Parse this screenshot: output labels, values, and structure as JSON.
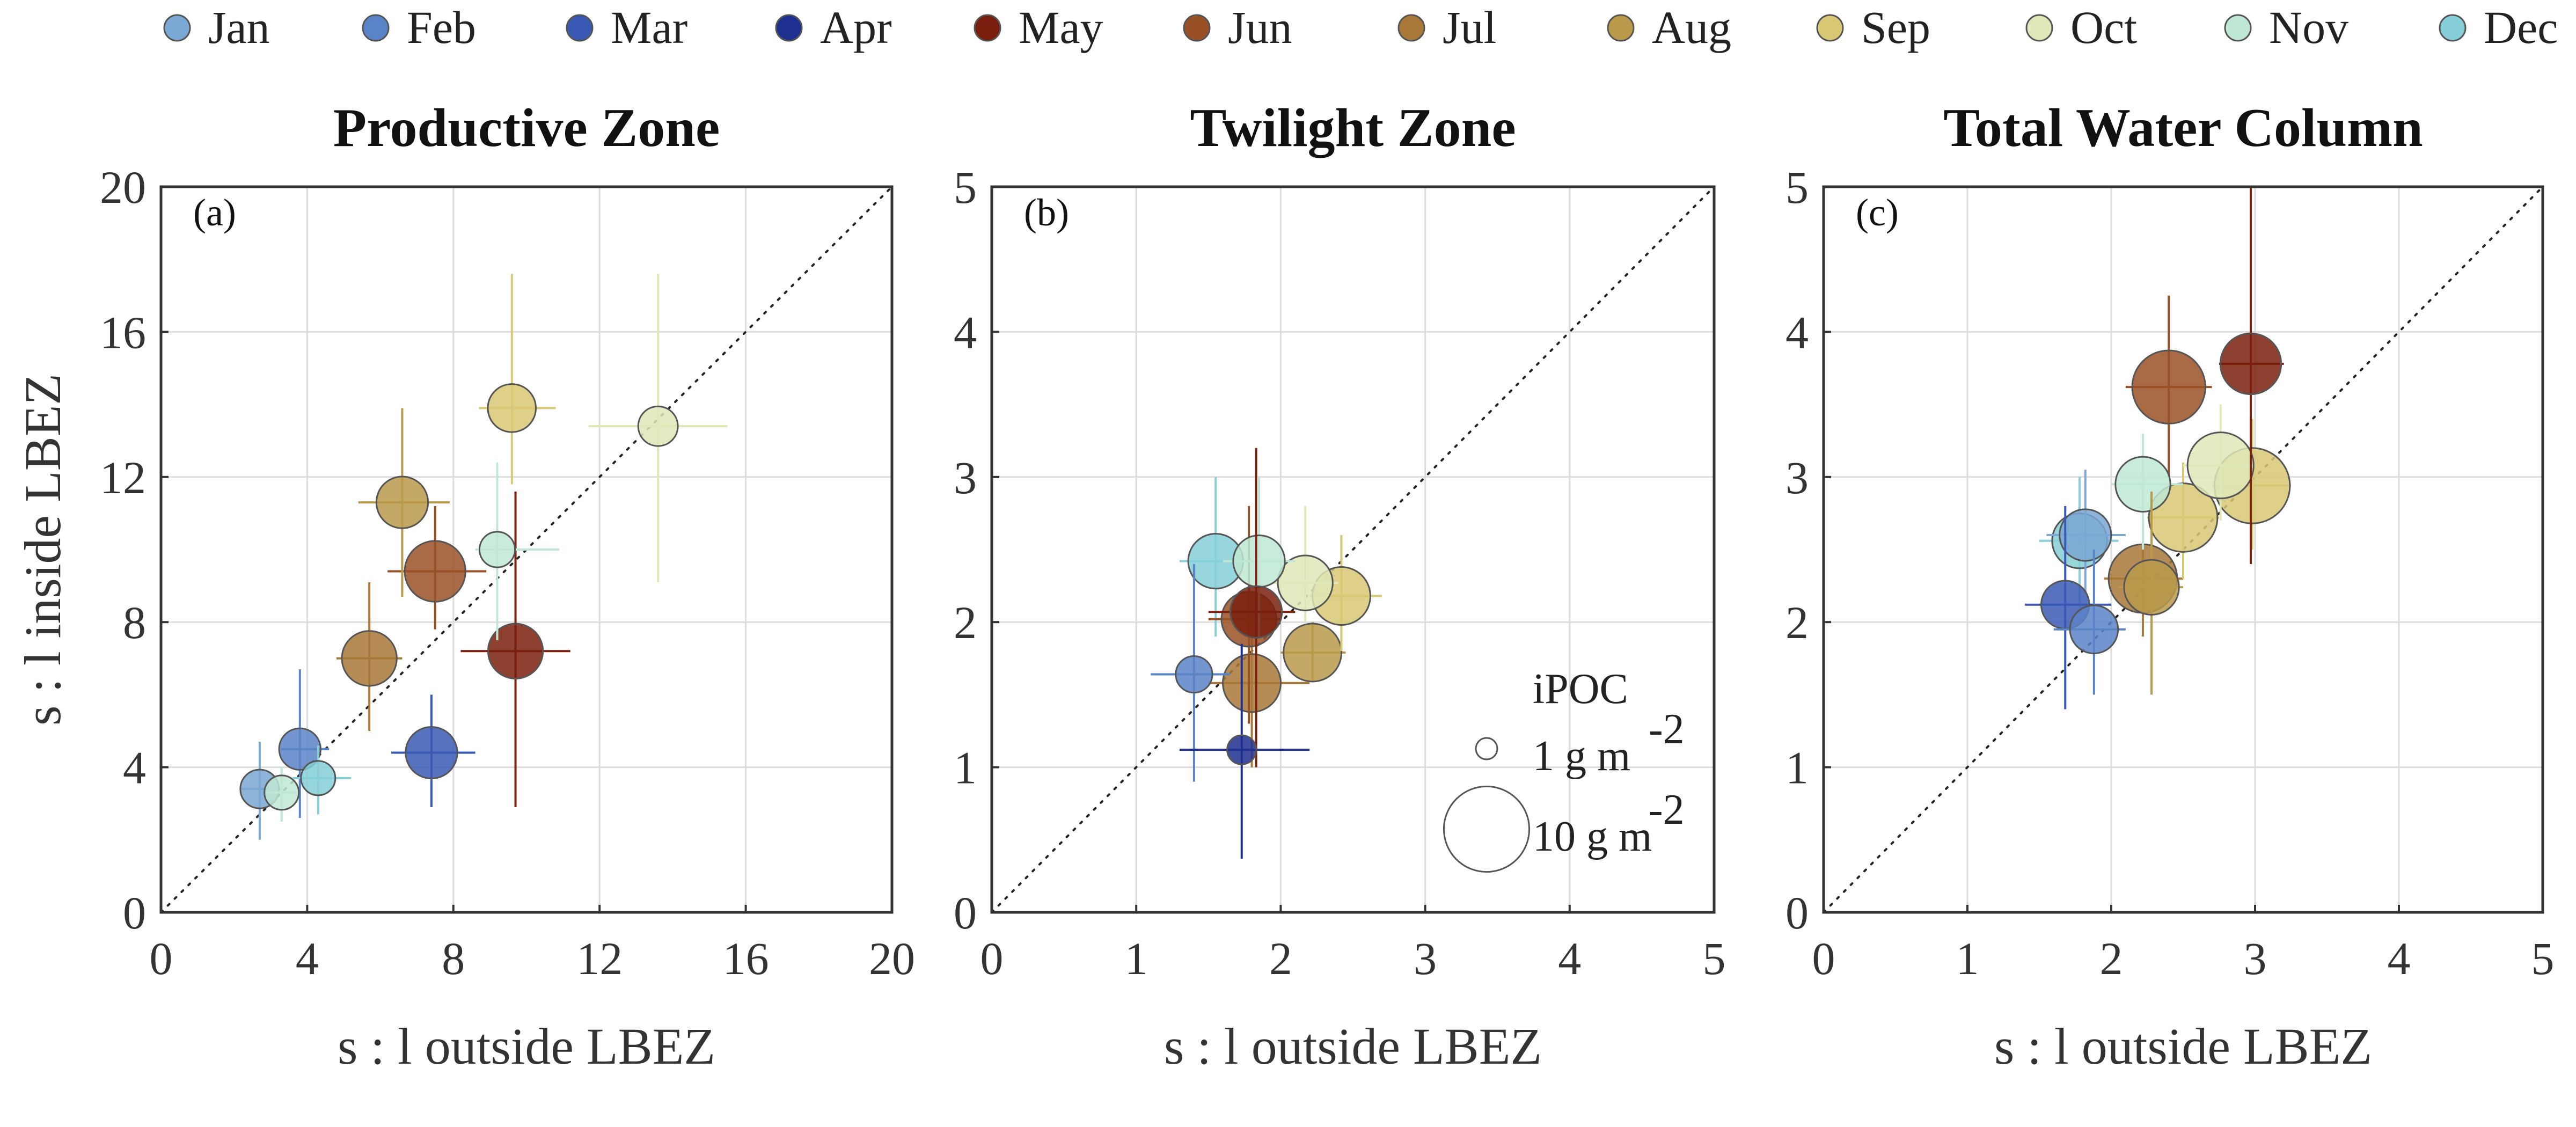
{
  "months": [
    "Jan",
    "Feb",
    "Mar",
    "Apr",
    "May",
    "Jun",
    "Jul",
    "Aug",
    "Sep",
    "Oct",
    "Nov",
    "Dec"
  ],
  "month_colors": {
    "Jan": "#7aa7d4",
    "Feb": "#5a84c8",
    "Mar": "#3a59b4",
    "Apr": "#1f2f8f",
    "May": "#7a1f0d",
    "Jun": "#9a5026",
    "Jul": "#a87838",
    "Aug": "#b89a4a",
    "Sep": "#d8c873",
    "Oct": "#dfe8b8",
    "Nov": "#bfe8d4",
    "Dec": "#86cfd8"
  },
  "axis_labels": {
    "y": "s : l inside LBEZ",
    "x": "s : l outside LBEZ"
  },
  "size_legend": {
    "title": "iPOC",
    "entries": [
      {
        "label": "1 g m",
        "exp": "-2",
        "value": 1
      },
      {
        "label": "10 g m",
        "exp": "-2",
        "value": 10
      }
    ]
  },
  "chart_data": [
    {
      "type": "scatter",
      "panel": "(a)",
      "title": "Productive Zone",
      "xlabel": "s : l outside LBEZ",
      "ylabel": "s : l inside LBEZ",
      "xlim": [
        0,
        20
      ],
      "ylim": [
        0,
        20
      ],
      "xticks": [
        0,
        4,
        8,
        12,
        16,
        20
      ],
      "yticks": [
        0,
        4,
        8,
        12,
        16,
        20
      ],
      "grid": true,
      "identity_line": true,
      "points": [
        {
          "month": "Jan",
          "x": 2.7,
          "y": 3.4,
          "xerr": [
            2.2,
            3.3
          ],
          "yerr": [
            2.0,
            4.7
          ],
          "ipoc": 1.4
        },
        {
          "month": "Feb",
          "x": 3.8,
          "y": 4.5,
          "xerr": [
            3.3,
            4.6
          ],
          "yerr": [
            2.6,
            6.7
          ],
          "ipoc": 1.7
        },
        {
          "month": "Nov",
          "x": 3.3,
          "y": 3.3,
          "xerr": [
            3.0,
            3.7
          ],
          "yerr": [
            2.5,
            4.0
          ],
          "ipoc": 1.0
        },
        {
          "month": "Dec",
          "x": 4.3,
          "y": 3.7,
          "xerr": [
            3.6,
            5.2
          ],
          "yerr": [
            2.7,
            4.6
          ],
          "ipoc": 1.0
        },
        {
          "month": "Mar",
          "x": 7.4,
          "y": 4.4,
          "xerr": [
            6.3,
            8.6
          ],
          "yerr": [
            2.9,
            6.0
          ],
          "ipoc": 3.0
        },
        {
          "month": "May",
          "x": 9.7,
          "y": 7.2,
          "xerr": [
            8.2,
            11.2
          ],
          "yerr": [
            2.9,
            11.6
          ],
          "ipoc": 3.5
        },
        {
          "month": "Jun",
          "x": 7.5,
          "y": 9.4,
          "xerr": [
            6.2,
            8.9
          ],
          "yerr": [
            7.8,
            11.2
          ],
          "ipoc": 4.5
        },
        {
          "month": "Jul",
          "x": 5.7,
          "y": 7.0,
          "xerr": [
            4.8,
            6.6
          ],
          "yerr": [
            5.0,
            9.1
          ],
          "ipoc": 3.5
        },
        {
          "month": "Aug",
          "x": 6.6,
          "y": 11.3,
          "xerr": [
            5.4,
            7.9
          ],
          "yerr": [
            8.7,
            13.9
          ],
          "ipoc": 3.0
        },
        {
          "month": "Sep",
          "x": 9.6,
          "y": 13.9,
          "xerr": [
            8.7,
            10.8
          ],
          "yerr": [
            11.8,
            17.6
          ],
          "ipoc": 2.5
        },
        {
          "month": "Oct",
          "x": 13.6,
          "y": 13.4,
          "xerr": [
            11.7,
            15.5
          ],
          "yerr": [
            9.1,
            17.6
          ],
          "ipoc": 1.5
        },
        {
          "month": "Nov",
          "x": 9.2,
          "y": 10.0,
          "xerr": [
            8.6,
            10.9
          ],
          "yerr": [
            7.5,
            12.4
          ],
          "ipoc": 1.1
        }
      ]
    },
    {
      "type": "scatter",
      "panel": "(b)",
      "title": "Twilight Zone",
      "xlabel": "s : l outside LBEZ",
      "ylabel": "",
      "xlim": [
        0,
        5
      ],
      "ylim": [
        0,
        5
      ],
      "xticks": [
        0,
        1,
        2,
        3,
        4,
        5
      ],
      "yticks": [
        0,
        1,
        2,
        3,
        4,
        5
      ],
      "grid": true,
      "identity_line": true,
      "points": [
        {
          "month": "Feb",
          "x": 1.4,
          "y": 1.64,
          "xerr": [
            1.1,
            1.65
          ],
          "yerr": [
            0.9,
            2.4
          ],
          "ipoc": 1.2
        },
        {
          "month": "Apr",
          "x": 1.73,
          "y": 1.12,
          "xerr": [
            1.3,
            2.2
          ],
          "yerr": [
            0.37,
            1.85
          ],
          "ipoc": 0.6
        },
        {
          "month": "Dec",
          "x": 1.55,
          "y": 2.42,
          "xerr": [
            1.3,
            1.85
          ],
          "yerr": [
            1.9,
            3.0
          ],
          "ipoc": 3.5
        },
        {
          "month": "Nov",
          "x": 1.85,
          "y": 2.42,
          "xerr": [
            1.6,
            2.1
          ],
          "yerr": [
            1.9,
            3.0
          ],
          "ipoc": 3.0
        },
        {
          "month": "May",
          "x": 1.83,
          "y": 2.07,
          "xerr": [
            1.5,
            2.1
          ],
          "yerr": [
            1.0,
            3.2
          ],
          "ipoc": 3.0
        },
        {
          "month": "Jun",
          "x": 1.78,
          "y": 2.02,
          "xerr": [
            1.5,
            2.0
          ],
          "yerr": [
            1.3,
            2.8
          ],
          "ipoc": 3.5
        },
        {
          "month": "Jul",
          "x": 1.8,
          "y": 1.58,
          "xerr": [
            1.5,
            2.2
          ],
          "yerr": [
            1.0,
            2.1
          ],
          "ipoc": 4.0
        },
        {
          "month": "Aug",
          "x": 2.22,
          "y": 1.79,
          "xerr": [
            2.0,
            2.45
          ],
          "yerr": [
            1.6,
            2.0
          ],
          "ipoc": 4.0
        },
        {
          "month": "Sep",
          "x": 2.42,
          "y": 2.18,
          "xerr": [
            2.2,
            2.7
          ],
          "yerr": [
            1.8,
            2.6
          ],
          "ipoc": 4.0
        },
        {
          "month": "Oct",
          "x": 2.17,
          "y": 2.27,
          "xerr": [
            1.95,
            2.4
          ],
          "yerr": [
            2.0,
            2.8
          ],
          "ipoc": 3.5
        }
      ]
    },
    {
      "type": "scatter",
      "panel": "(c)",
      "title": "Total Water Column",
      "xlabel": "s : l outside LBEZ",
      "ylabel": "",
      "xlim": [
        0,
        5
      ],
      "ylim": [
        0,
        5
      ],
      "xticks": [
        0,
        1,
        2,
        3,
        4,
        5
      ],
      "yticks": [
        0,
        1,
        2,
        3,
        4,
        5
      ],
      "grid": true,
      "identity_line": true,
      "points": [
        {
          "month": "Mar",
          "x": 1.68,
          "y": 2.12,
          "xerr": [
            1.4,
            2.0
          ],
          "yerr": [
            1.4,
            2.8
          ],
          "ipoc": 2.5
        },
        {
          "month": "Feb",
          "x": 1.88,
          "y": 1.95,
          "xerr": [
            1.6,
            2.1
          ],
          "yerr": [
            1.5,
            2.5
          ],
          "ipoc": 2.5
        },
        {
          "month": "Jan",
          "x": 1.82,
          "y": 2.6,
          "xerr": [
            1.55,
            2.1
          ],
          "yerr": [
            2.2,
            3.05
          ],
          "ipoc": 3.0
        },
        {
          "month": "Dec",
          "x": 1.78,
          "y": 2.56,
          "xerr": [
            1.5,
            2.05
          ],
          "yerr": [
            2.1,
            3.0
          ],
          "ipoc": 3.5
        },
        {
          "month": "Nov",
          "x": 2.22,
          "y": 2.95,
          "xerr": [
            2.0,
            2.5
          ],
          "yerr": [
            2.5,
            3.3
          ],
          "ipoc": 3.5
        },
        {
          "month": "Jun",
          "x": 2.4,
          "y": 3.62,
          "xerr": [
            2.1,
            2.7
          ],
          "yerr": [
            3.0,
            4.25
          ],
          "ipoc": 7.0
        },
        {
          "month": "May",
          "x": 2.97,
          "y": 3.78,
          "xerr": [
            2.75,
            3.2
          ],
          "yerr": [
            2.4,
            5.0
          ],
          "ipoc": 4.5
        },
        {
          "month": "Jul",
          "x": 2.22,
          "y": 2.3,
          "xerr": [
            1.95,
            2.5
          ],
          "yerr": [
            1.9,
            2.7
          ],
          "ipoc": 6.0
        },
        {
          "month": "Aug",
          "x": 2.28,
          "y": 2.24,
          "xerr": [
            2.05,
            2.5
          ],
          "yerr": [
            1.5,
            2.9
          ],
          "ipoc": 3.5
        },
        {
          "month": "Sep",
          "x": 2.5,
          "y": 2.72,
          "xerr": [
            2.25,
            2.75
          ],
          "yerr": [
            2.3,
            3.1
          ],
          "ipoc": 6.0
        },
        {
          "month": "Oct",
          "x": 2.76,
          "y": 3.08,
          "xerr": [
            2.5,
            3.0
          ],
          "yerr": [
            2.7,
            3.5
          ],
          "ipoc": 5.5
        },
        {
          "month": "Sep",
          "x": 2.98,
          "y": 2.94,
          "xerr": [
            2.7,
            3.25
          ],
          "yerr": [
            2.5,
            3.4
          ],
          "ipoc": 7.5
        }
      ]
    }
  ]
}
